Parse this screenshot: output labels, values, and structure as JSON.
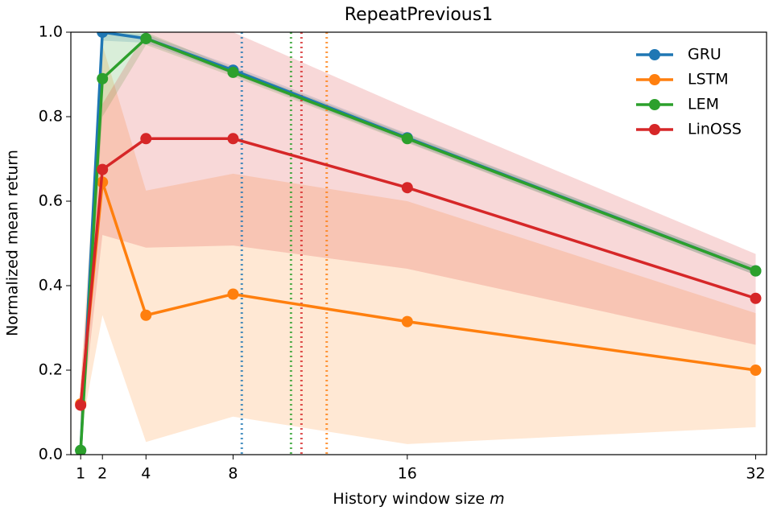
{
  "chart_data": {
    "type": "line",
    "title": "RepeatPrevious1",
    "xlabel": "History window size",
    "xlabel_var": "m",
    "ylabel": "Normalized mean return",
    "x": [
      1,
      2,
      4,
      8,
      16,
      32
    ],
    "xlim": [
      0.55,
      32.5
    ],
    "ylim": [
      0,
      1
    ],
    "xticks": [
      1,
      2,
      4,
      8,
      16,
      32
    ],
    "yticks": [
      {
        "value": 0,
        "label": "0.0"
      },
      0.2,
      0.4,
      0.6,
      0.8,
      {
        "value": 1,
        "label": "1.0"
      }
    ],
    "legend": "upper right",
    "series": [
      {
        "name": "GRU",
        "color": "#1f77b4",
        "values": [
          0.01,
          1.0,
          0.985,
          0.91,
          0.75,
          0.435
        ],
        "lower": [
          0.0,
          0.98,
          0.975,
          0.9,
          0.74,
          0.425
        ],
        "upper": [
          0.02,
          1.0,
          0.995,
          0.92,
          0.76,
          0.445
        ],
        "threshold": 8.4
      },
      {
        "name": "LSTM",
        "color": "#ff7f0e",
        "values": [
          0.12,
          0.645,
          0.33,
          0.38,
          0.315,
          0.2
        ],
        "lower": [
          0.05,
          0.33,
          0.03,
          0.09,
          0.025,
          0.065
        ],
        "upper": [
          0.17,
          0.97,
          0.625,
          0.665,
          0.6,
          0.335
        ],
        "threshold": 12.3
      },
      {
        "name": "LEM",
        "color": "#2ca02c",
        "values": [
          0.01,
          0.89,
          0.985,
          0.905,
          0.748,
          0.435
        ],
        "lower": [
          0.0,
          0.8,
          0.97,
          0.895,
          0.738,
          0.425
        ],
        "upper": [
          0.02,
          1.0,
          1.0,
          0.915,
          0.758,
          0.445
        ],
        "threshold": 10.66
      },
      {
        "name": "LinOSS",
        "color": "#d62728",
        "values": [
          0.117,
          0.675,
          0.748,
          0.748,
          0.632,
          0.37
        ],
        "lower": [
          0.06,
          0.52,
          0.49,
          0.495,
          0.44,
          0.26
        ],
        "upper": [
          0.17,
          0.83,
          1.0,
          1.0,
          0.82,
          0.475
        ],
        "threshold": 11.14
      }
    ]
  }
}
